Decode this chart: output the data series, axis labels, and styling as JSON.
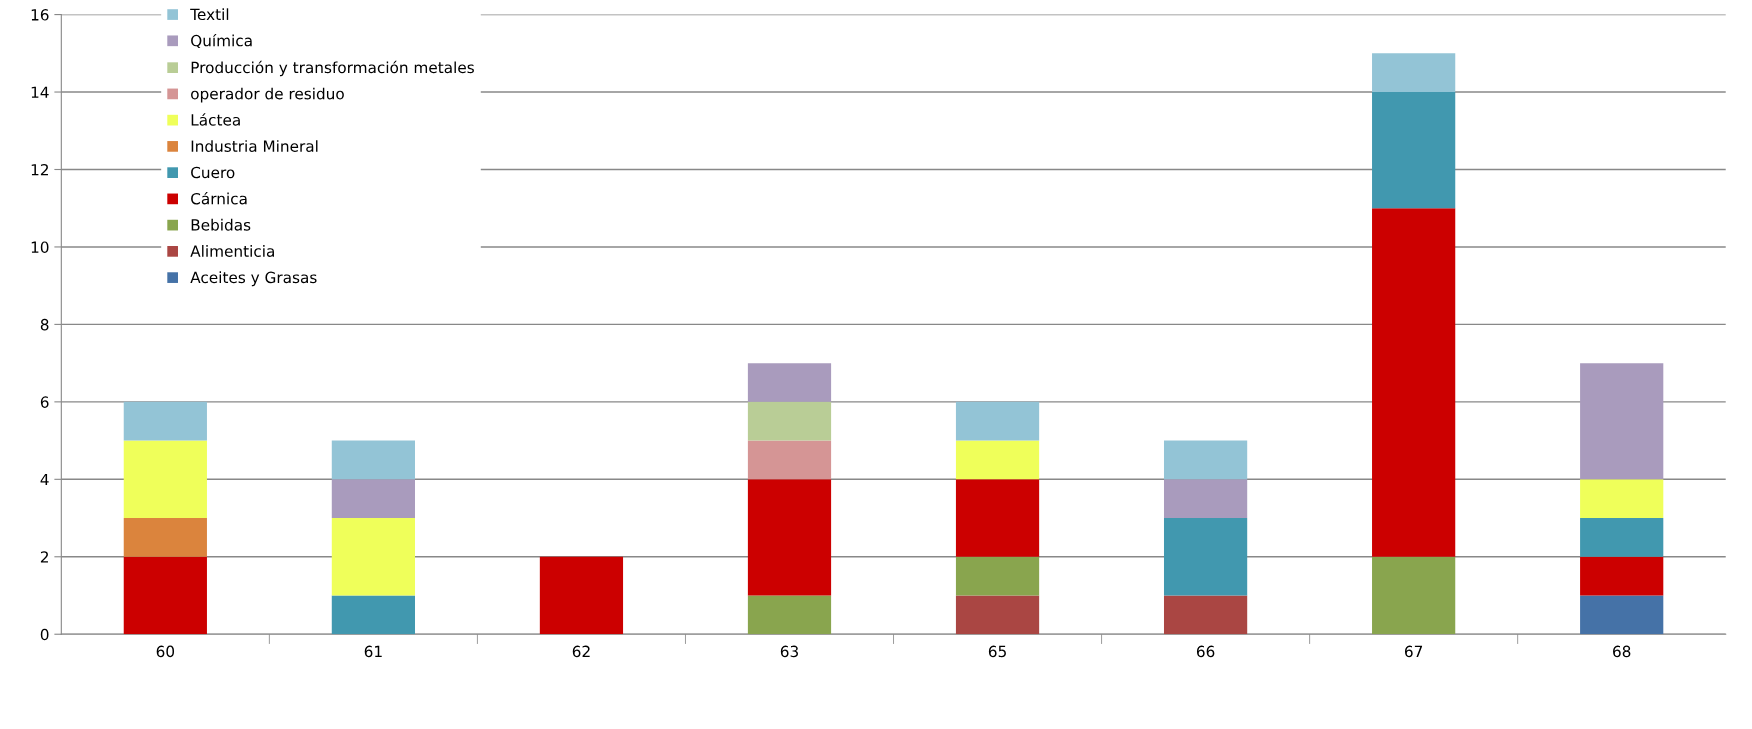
{
  "chart_data": {
    "type": "bar",
    "stacked": true,
    "categories": [
      "60",
      "61",
      "62",
      "63",
      "65",
      "66",
      "67",
      "68"
    ],
    "series": [
      {
        "name": "Aceites y Grasas",
        "color": "#4572a7",
        "values": [
          null,
          null,
          null,
          null,
          null,
          null,
          null,
          1
        ]
      },
      {
        "name": "Alimenticia",
        "color": "#aa4643",
        "values": [
          null,
          null,
          null,
          null,
          1,
          1,
          null,
          null
        ]
      },
      {
        "name": "Bebidas",
        "color": "#89a54e",
        "values": [
          null,
          null,
          null,
          1,
          1,
          null,
          2,
          null
        ]
      },
      {
        "name": "Cárnica",
        "color": "#cc0000",
        "values": [
          2,
          null,
          2,
          3,
          2,
          null,
          9,
          1
        ]
      },
      {
        "name": "Cuero",
        "color": "#4198af",
        "values": [
          null,
          1,
          null,
          null,
          null,
          2,
          3,
          1
        ]
      },
      {
        "name": "Industria Mineral",
        "color": "#db843d",
        "values": [
          1,
          null,
          null,
          null,
          null,
          null,
          null,
          null
        ]
      },
      {
        "name": "Láctea",
        "color": "#efff5a",
        "values": [
          2,
          2,
          null,
          null,
          1,
          null,
          null,
          1
        ]
      },
      {
        "name": "operador de residuo",
        "color": "#d59595",
        "values": [
          null,
          null,
          null,
          1,
          null,
          null,
          null,
          null
        ]
      },
      {
        "name": "Producción y transformación metales",
        "color": "#b9cd96",
        "values": [
          null,
          null,
          null,
          1,
          null,
          null,
          null,
          null
        ]
      },
      {
        "name": "Química",
        "color": "#a99bbd",
        "values": [
          null,
          1,
          null,
          1,
          null,
          1,
          null,
          3
        ]
      },
      {
        "name": "Textil",
        "color": "#93c4d6",
        "values": [
          1,
          1,
          null,
          null,
          1,
          1,
          1,
          null
        ]
      }
    ],
    "ylim": [
      0,
      16
    ],
    "yticks": [
      0,
      2,
      4,
      6,
      8,
      10,
      12,
      14,
      16
    ],
    "grid": "y",
    "legend": "top left"
  }
}
